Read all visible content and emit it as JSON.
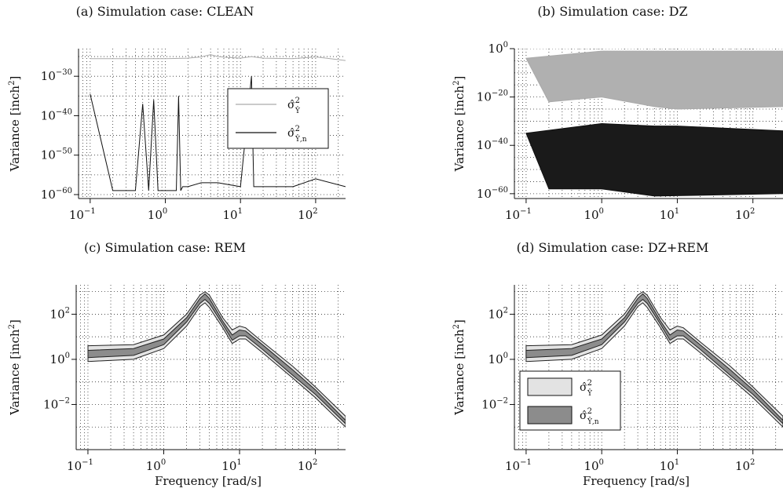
{
  "colors": {
    "clean_series": "#aaaaaa",
    "noise_series": "#111111",
    "band_light": "#e3e3e3",
    "band_dark": "#8c8c8c",
    "grid": "#333333"
  },
  "chart_data": [
    {
      "id": "a",
      "type": "line",
      "title": "(a) Simulation case: CLEAN",
      "xlabel": "",
      "ylabel": "Variance [inch",
      "ylabel_sup": "2",
      "ylabel_close": "]",
      "xscale": "log",
      "yscale": "log",
      "xlim": [
        0.07,
        250
      ],
      "ylim": [
        1e-61,
        1e-23
      ],
      "x_ticks": [
        {
          "mant": "10",
          "exp": "−1"
        },
        {
          "mant": "10",
          "exp": "0"
        },
        {
          "mant": "10",
          "exp": "1"
        },
        {
          "mant": "10",
          "exp": "2"
        }
      ],
      "y_ticks": [
        {
          "mant": "10",
          "exp": "−30"
        },
        {
          "mant": "10",
          "exp": "−40"
        },
        {
          "mant": "10",
          "exp": "−50"
        },
        {
          "mant": "10",
          "exp": "−60"
        }
      ],
      "x_tick_values": [
        0.1,
        1,
        10,
        100
      ],
      "y_tick_values": [
        1e-30,
        1e-40,
        1e-50,
        1e-60
      ],
      "grid": true,
      "legend": {
        "position": "right",
        "style": "line",
        "entries": [
          {
            "base": "σ̂",
            "sup": "2",
            "sub": "Ŷ"
          },
          {
            "base": "σ̂",
            "sup": "2",
            "sub": "Ŷ,n"
          }
        ]
      },
      "series": [
        {
          "style": "light-line",
          "points": [
            [
              0.1,
              3e-26
            ],
            [
              0.5,
              3e-26
            ],
            [
              1,
              3e-26
            ],
            [
              2,
              4e-26
            ],
            [
              3,
              8e-26
            ],
            [
              4,
              3e-25
            ],
            [
              5,
              1e-25
            ],
            [
              7,
              6e-26
            ],
            [
              10,
              4e-26
            ],
            [
              14,
              1e-25
            ],
            [
              20,
              4e-26
            ],
            [
              50,
              3e-26
            ],
            [
              100,
              8e-26
            ],
            [
              250,
              1e-26
            ]
          ]
        },
        {
          "style": "dark-line",
          "points": [
            [
              0.1,
              3e-35
            ],
            [
              0.2,
              1e-59
            ],
            [
              0.4,
              1e-59
            ],
            [
              0.5,
              1e-37
            ],
            [
              0.6,
              1e-59
            ],
            [
              0.7,
              1e-36
            ],
            [
              0.8,
              1e-59
            ],
            [
              1.4,
              1e-59
            ],
            [
              1.5,
              1e-35
            ],
            [
              1.6,
              1e-59
            ],
            [
              1.7,
              1e-58
            ],
            [
              2,
              1e-58
            ],
            [
              3,
              1e-57
            ],
            [
              5,
              1e-57
            ],
            [
              10,
              1e-58
            ],
            [
              14,
              1e-30
            ],
            [
              15,
              1e-58
            ],
            [
              20,
              1e-58
            ],
            [
              50,
              1e-58
            ],
            [
              100,
              1e-56
            ],
            [
              250,
              1e-58
            ]
          ]
        }
      ]
    },
    {
      "id": "b",
      "type": "line",
      "title": "(b) Simulation case: DZ",
      "xlabel": "",
      "ylabel": "Variance [inch",
      "ylabel_sup": "2",
      "ylabel_close": "]",
      "xscale": "log",
      "yscale": "log",
      "xlim": [
        0.07,
        250
      ],
      "ylim": [
        1e-62,
        1.0
      ],
      "x_ticks": [
        {
          "mant": "10",
          "exp": "−1"
        },
        {
          "mant": "10",
          "exp": "0"
        },
        {
          "mant": "10",
          "exp": "1"
        },
        {
          "mant": "10",
          "exp": "2"
        }
      ],
      "y_ticks": [
        {
          "mant": "10",
          "exp": "0"
        },
        {
          "mant": "10",
          "exp": "−20"
        },
        {
          "mant": "10",
          "exp": "−40"
        },
        {
          "mant": "10",
          "exp": "−60"
        }
      ],
      "x_tick_values": [
        0.1,
        1,
        10,
        100
      ],
      "y_tick_values": [
        1.0,
        1e-20,
        1e-40,
        1e-60
      ],
      "grid": true,
      "series": [
        {
          "style": "light-band",
          "upper": [
            [
              0.1,
              0.0001
            ],
            [
              1,
              0.1
            ],
            [
              250,
              0.1
            ]
          ],
          "lower": [
            [
              0.1,
              0.0001
            ],
            [
              0.2,
              1e-22
            ],
            [
              1,
              1e-20
            ],
            [
              5,
              1e-24
            ],
            [
              10,
              1e-25
            ],
            [
              250,
              1e-24
            ]
          ]
        },
        {
          "style": "dark-band",
          "upper": [
            [
              0.1,
              1e-35
            ],
            [
              1,
              1e-31
            ],
            [
              5,
              1e-32
            ],
            [
              10,
              1e-32
            ],
            [
              250,
              1e-34
            ]
          ],
          "lower": [
            [
              0.1,
              1e-35
            ],
            [
              0.2,
              1e-58
            ],
            [
              1,
              1e-58
            ],
            [
              5,
              1e-61
            ],
            [
              250,
              1e-60
            ]
          ]
        }
      ]
    },
    {
      "id": "c",
      "type": "area",
      "title": "(c) Simulation case: REM",
      "xlabel": "Frequency [rad/s]",
      "ylabel": "Variance [inch",
      "ylabel_sup": "2",
      "ylabel_close": "]",
      "xscale": "log",
      "yscale": "log",
      "xlim": [
        0.07,
        250
      ],
      "ylim": [
        0.0001,
        2000.0
      ],
      "x_ticks": [
        {
          "mant": "10",
          "exp": "−1"
        },
        {
          "mant": "10",
          "exp": "0"
        },
        {
          "mant": "10",
          "exp": "1"
        },
        {
          "mant": "10",
          "exp": "2"
        }
      ],
      "y_ticks": [
        {
          "mant": "10",
          "exp": "2"
        },
        {
          "mant": "10",
          "exp": "0"
        },
        {
          "mant": "10",
          "exp": "−2"
        }
      ],
      "x_tick_values": [
        0.1,
        1,
        10,
        100
      ],
      "y_tick_values": [
        100,
        1,
        0.01
      ],
      "grid": true,
      "series": [
        {
          "style": "light-band",
          "upper": [
            [
              0.1,
              4
            ],
            [
              0.4,
              4.5
            ],
            [
              1,
              12
            ],
            [
              2,
              100
            ],
            [
              3,
              700
            ],
            [
              3.5,
              1000
            ],
            [
              4,
              700
            ],
            [
              6,
              70
            ],
            [
              8,
              20
            ],
            [
              10,
              30
            ],
            [
              12,
              25
            ],
            [
              20,
              6
            ],
            [
              50,
              0.5
            ],
            [
              100,
              0.06
            ],
            [
              250,
              0.003
            ]
          ],
          "lower": [
            [
              0.1,
              0.8
            ],
            [
              0.4,
              1
            ],
            [
              1,
              3
            ],
            [
              2,
              30
            ],
            [
              3,
              220
            ],
            [
              3.5,
              320
            ],
            [
              4,
              200
            ],
            [
              6,
              25
            ],
            [
              8,
              5
            ],
            [
              10,
              8
            ],
            [
              12,
              8
            ],
            [
              20,
              2
            ],
            [
              50,
              0.15
            ],
            [
              100,
              0.02
            ],
            [
              250,
              0.001
            ]
          ]
        },
        {
          "style": "dark-band",
          "upper": [
            [
              0.1,
              2.5
            ],
            [
              0.4,
              3
            ],
            [
              1,
              8
            ],
            [
              2,
              70
            ],
            [
              3,
              500
            ],
            [
              3.5,
              800
            ],
            [
              4,
              500
            ],
            [
              6,
              50
            ],
            [
              8,
              12
            ],
            [
              10,
              20
            ],
            [
              12,
              18
            ],
            [
              20,
              4.5
            ],
            [
              50,
              0.35
            ],
            [
              100,
              0.045
            ],
            [
              250,
              0.002
            ]
          ],
          "lower": [
            [
              0.1,
              1.2
            ],
            [
              0.4,
              1.5
            ],
            [
              1,
              4.5
            ],
            [
              2,
              45
            ],
            [
              3,
              300
            ],
            [
              3.5,
              450
            ],
            [
              4,
              300
            ],
            [
              6,
              35
            ],
            [
              8,
              7
            ],
            [
              10,
              11
            ],
            [
              12,
              11
            ],
            [
              20,
              2.8
            ],
            [
              50,
              0.2
            ],
            [
              100,
              0.028
            ],
            [
              250,
              0.0014
            ]
          ]
        }
      ]
    },
    {
      "id": "d",
      "type": "area",
      "title": "(d) Simulation case: DZ+REM",
      "xlabel": "Frequency [rad/s]",
      "ylabel": "Variance [inch",
      "ylabel_sup": "2",
      "ylabel_close": "]",
      "xscale": "log",
      "yscale": "log",
      "xlim": [
        0.07,
        250
      ],
      "ylim": [
        0.0001,
        2000.0
      ],
      "x_ticks": [
        {
          "mant": "10",
          "exp": "−1"
        },
        {
          "mant": "10",
          "exp": "0"
        },
        {
          "mant": "10",
          "exp": "1"
        },
        {
          "mant": "10",
          "exp": "2"
        }
      ],
      "y_ticks": [
        {
          "mant": "10",
          "exp": "2"
        },
        {
          "mant": "10",
          "exp": "0"
        },
        {
          "mant": "10",
          "exp": "−2"
        }
      ],
      "x_tick_values": [
        0.1,
        1,
        10,
        100
      ],
      "y_tick_values": [
        100,
        1,
        0.01
      ],
      "grid": true,
      "legend": {
        "position": "bottom-left",
        "style": "patch",
        "entries": [
          {
            "base": "σ̂",
            "sup": "2",
            "sub": "Ŷ"
          },
          {
            "base": "σ̂",
            "sup": "2",
            "sub": "Ŷ,n"
          }
        ]
      },
      "series": [
        {
          "style": "light-band",
          "upper": [
            [
              0.1,
              4
            ],
            [
              0.4,
              4.5
            ],
            [
              1,
              12
            ],
            [
              2,
              100
            ],
            [
              3,
              700
            ],
            [
              3.5,
              1000
            ],
            [
              4,
              700
            ],
            [
              6,
              70
            ],
            [
              8,
              20
            ],
            [
              10,
              30
            ],
            [
              12,
              25
            ],
            [
              20,
              6
            ],
            [
              50,
              0.5
            ],
            [
              100,
              0.06
            ],
            [
              250,
              0.003
            ]
          ],
          "lower": [
            [
              0.1,
              0.8
            ],
            [
              0.4,
              1
            ],
            [
              1,
              3
            ],
            [
              2,
              30
            ],
            [
              3,
              220
            ],
            [
              3.5,
              320
            ],
            [
              4,
              200
            ],
            [
              6,
              25
            ],
            [
              8,
              5
            ],
            [
              10,
              8
            ],
            [
              12,
              8
            ],
            [
              20,
              2
            ],
            [
              50,
              0.15
            ],
            [
              100,
              0.02
            ],
            [
              250,
              0.001
            ]
          ]
        },
        {
          "style": "dark-band",
          "upper": [
            [
              0.1,
              2.5
            ],
            [
              0.4,
              3
            ],
            [
              1,
              8
            ],
            [
              2,
              70
            ],
            [
              3,
              500
            ],
            [
              3.5,
              800
            ],
            [
              4,
              500
            ],
            [
              6,
              50
            ],
            [
              8,
              12
            ],
            [
              10,
              20
            ],
            [
              12,
              18
            ],
            [
              20,
              4.5
            ],
            [
              50,
              0.35
            ],
            [
              100,
              0.045
            ],
            [
              250,
              0.002
            ]
          ],
          "lower": [
            [
              0.1,
              1.2
            ],
            [
              0.4,
              1.5
            ],
            [
              1,
              4.5
            ],
            [
              2,
              45
            ],
            [
              3,
              300
            ],
            [
              3.5,
              450
            ],
            [
              4,
              300
            ],
            [
              6,
              35
            ],
            [
              8,
              7
            ],
            [
              10,
              11
            ],
            [
              12,
              11
            ],
            [
              20,
              2.8
            ],
            [
              50,
              0.2
            ],
            [
              100,
              0.028
            ],
            [
              250,
              0.0014
            ]
          ]
        }
      ]
    }
  ]
}
